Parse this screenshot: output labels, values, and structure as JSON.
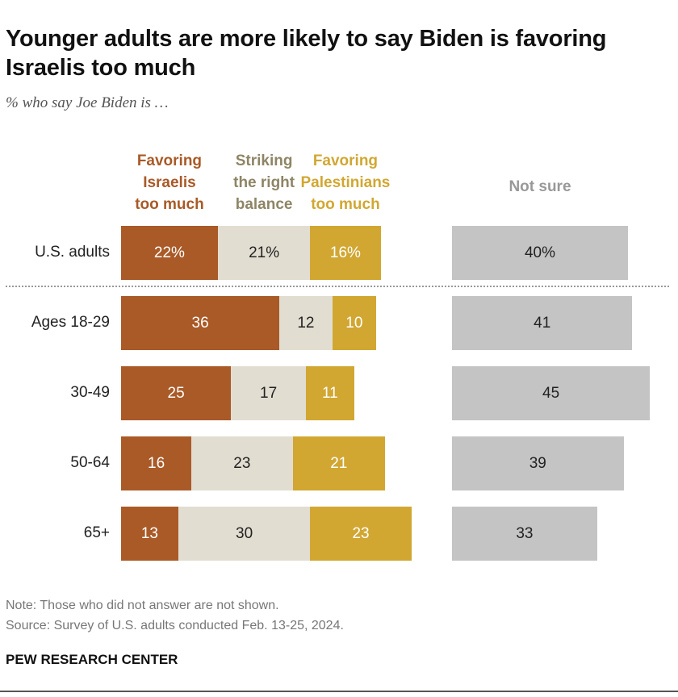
{
  "title": "Younger adults are more likely to say Biden is favoring Israelis too much",
  "subtitle": "% who say Joe Biden is …",
  "colors": {
    "favoring_israelis": "#a95a27",
    "right_balance": "#e2ddd1",
    "favoring_palestinians": "#d1a732",
    "not_sure": "#c4c4c4",
    "head_israelis": "#a95a27",
    "head_balance": "#8e8566",
    "head_palestinians": "#d1a732",
    "head_not_sure": "#999999"
  },
  "chart_data": {
    "type": "bar",
    "orientation": "horizontal",
    "stacked": true,
    "title": "Younger adults are more likely to say Biden is favoring Israelis too much",
    "subtitle": "% who say Joe Biden is …",
    "categories": [
      "U.S. adults",
      "Ages 18-29",
      "30-49",
      "50-64",
      "65+"
    ],
    "series": [
      {
        "name": "Favoring Israelis too much",
        "values": [
          22,
          36,
          25,
          16,
          13
        ],
        "labels": [
          "22%",
          "36",
          "25",
          "16",
          "13"
        ]
      },
      {
        "name": "Striking the right balance",
        "values": [
          21,
          12,
          17,
          23,
          30
        ],
        "labels": [
          "21%",
          "12",
          "17",
          "23",
          "30"
        ]
      },
      {
        "name": "Favoring Palestinians too much",
        "values": [
          16,
          10,
          11,
          21,
          23
        ],
        "labels": [
          "16%",
          "10",
          "11",
          "21",
          "23"
        ]
      },
      {
        "name": "Not sure",
        "values": [
          40,
          41,
          45,
          39,
          33
        ],
        "labels": [
          "40%",
          "41",
          "45",
          "39",
          "33"
        ],
        "separate_panel": true
      }
    ],
    "column_headers": [
      {
        "lines": [
          "Favoring",
          "Israelis",
          "too much"
        ]
      },
      {
        "lines": [
          "Striking",
          "the right",
          "balance"
        ]
      },
      {
        "lines": [
          "Favoring",
          "Palestinians",
          "too much"
        ]
      },
      {
        "lines": [
          "Not sure"
        ]
      }
    ]
  },
  "notes": {
    "note": "Note: Those who did not answer are not shown.",
    "source": "Source: Survey of U.S. adults conducted Feb. 13-25, 2024."
  },
  "brand": "PEW RESEARCH CENTER"
}
